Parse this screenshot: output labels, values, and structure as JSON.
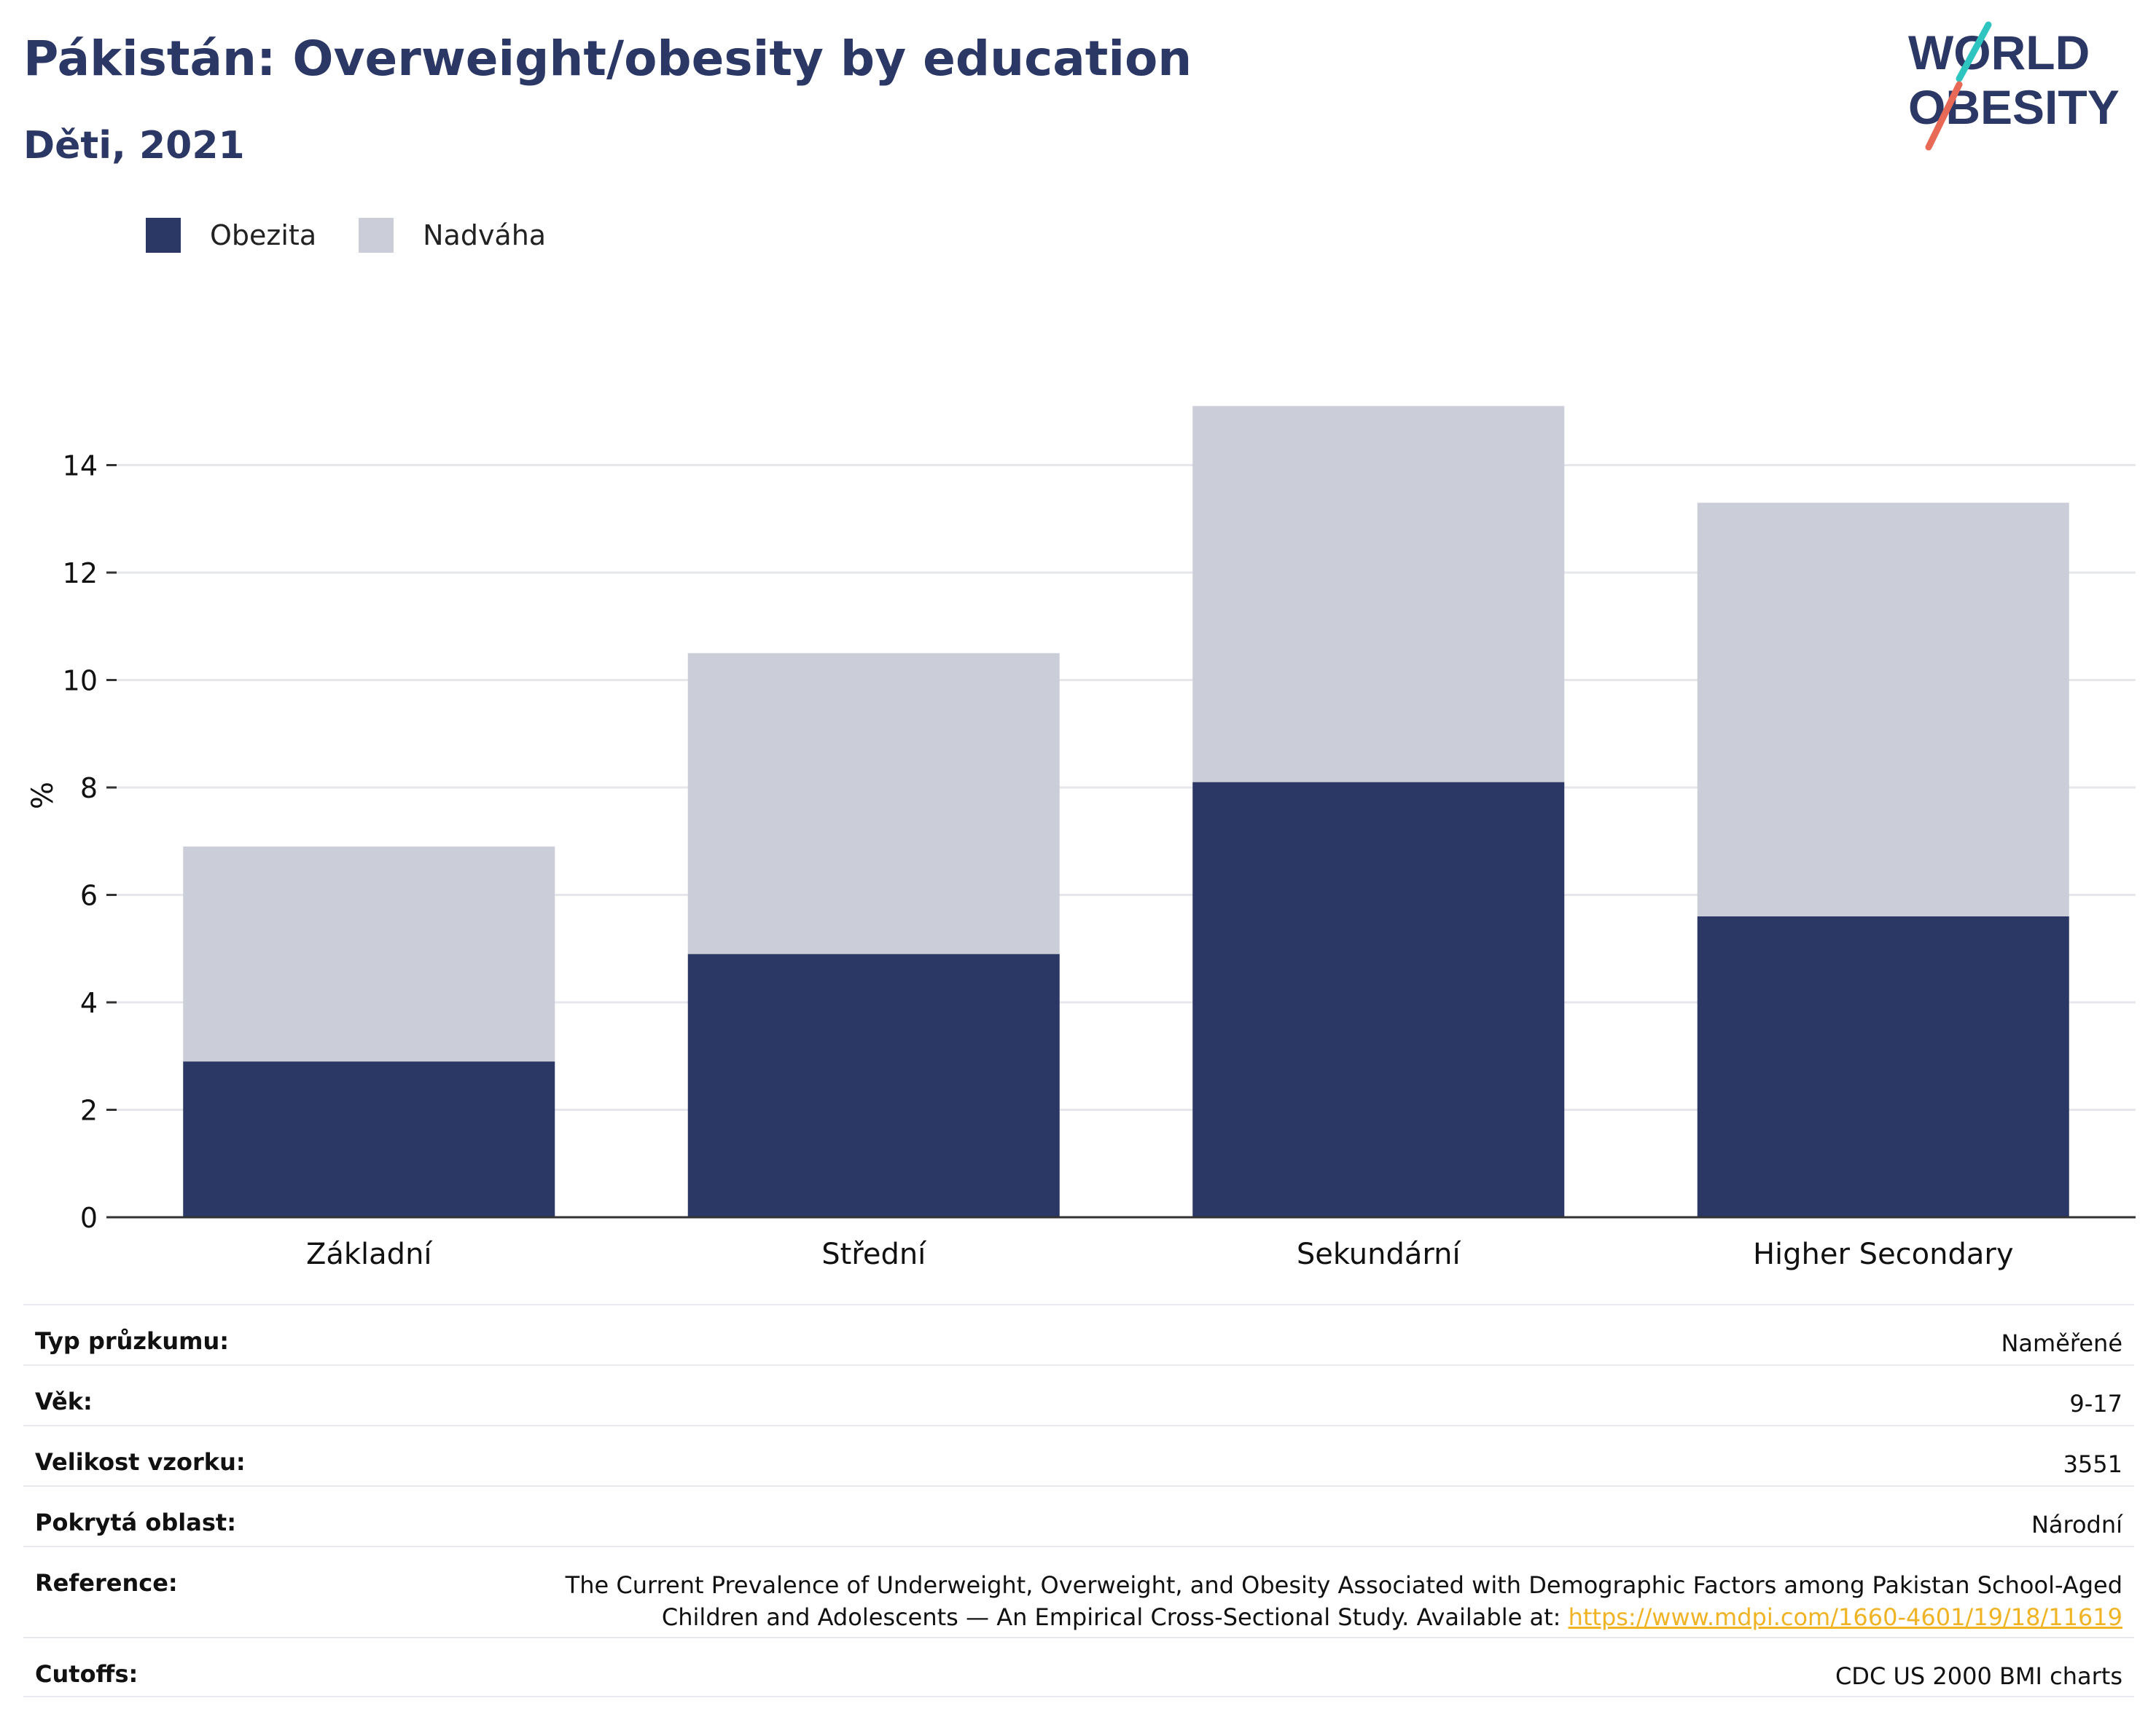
{
  "header": {
    "title": "Pákistán: Overweight/obesity by education",
    "subtitle": "Děti, 2021"
  },
  "logo": {
    "line1": "WORLD",
    "line2": "OBESITY"
  },
  "colors": {
    "obesity": "#2b3764",
    "overweight": "#cbcdd8",
    "title": "#2b3764",
    "link": "#f0b323"
  },
  "legend": [
    {
      "label": "Obezita",
      "color": "#2b3764"
    },
    {
      "label": "Nadváha",
      "color": "#cbcdd8"
    }
  ],
  "chart_data": {
    "type": "bar",
    "stacked": true,
    "categories": [
      "Základní",
      "Střední",
      "Sekundární",
      "Higher Secondary"
    ],
    "series": [
      {
        "name": "Obezita",
        "values": [
          2.9,
          4.9,
          8.1,
          5.6
        ]
      },
      {
        "name": "Nadváha",
        "values": [
          4.0,
          5.6,
          7.0,
          7.7
        ]
      }
    ],
    "ylabel": "%",
    "ylim": [
      0,
      16
    ],
    "yticks": [
      0,
      2,
      4,
      6,
      8,
      10,
      12,
      14
    ],
    "grid": true,
    "legend_position": "top-left"
  },
  "info": [
    {
      "key": "Typ průzkumu:",
      "value": "Naměřené"
    },
    {
      "key": "Věk:",
      "value": "9-17"
    },
    {
      "key": "Velikost vzorku:",
      "value": "3551"
    },
    {
      "key": "Pokrytá oblast:",
      "value": "Národní"
    },
    {
      "key": "Reference:",
      "value_line1": "The Current Prevalence of Underweight, Overweight, and Obesity Associated with Demographic Factors among Pakistan School-Aged",
      "value_line2": "Children and Adolescents — An Empirical Cross-Sectional Study. Available at: ",
      "link": "https://www.mdpi.com/1660-4601/19/18/11619"
    },
    {
      "key": "Cutoffs:",
      "value": "CDC US 2000 BMI charts"
    }
  ]
}
